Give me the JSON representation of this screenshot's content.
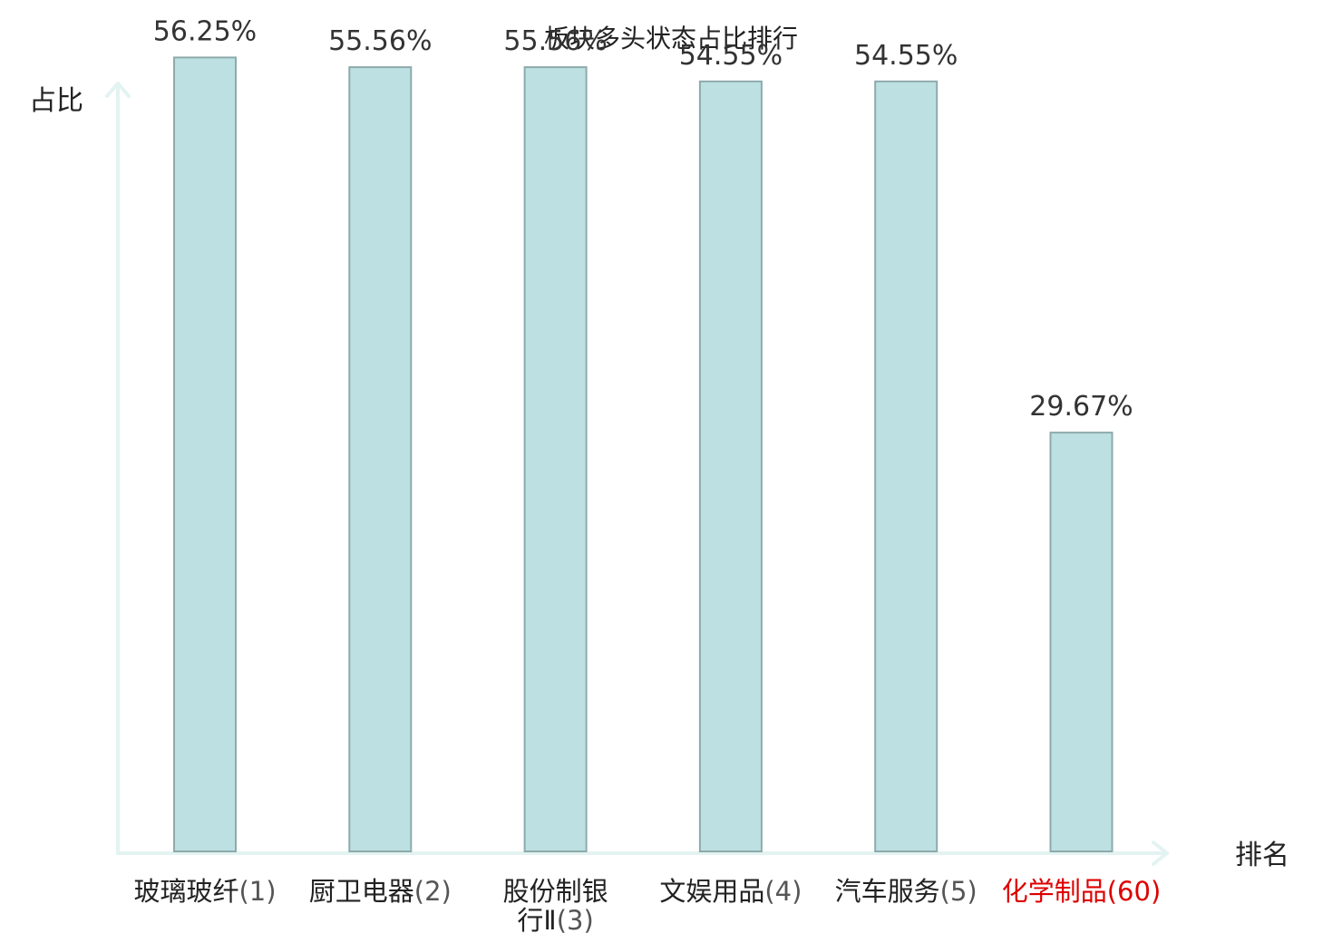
{
  "chart_data": {
    "type": "bar",
    "title": "板块多头状态占比排行",
    "xlabel": "排名",
    "ylabel": "占比",
    "categories": [
      {
        "name": "玻璃玻纤",
        "rank": "(1)",
        "highlight": false
      },
      {
        "name": "厨卫电器",
        "rank": "(2)",
        "highlight": false
      },
      {
        "name": "股份制银行Ⅱ",
        "rank": "(3)",
        "highlight": false
      },
      {
        "name": "文娱用品",
        "rank": "(4)",
        "highlight": false
      },
      {
        "name": "汽车服务",
        "rank": "(5)",
        "highlight": false
      },
      {
        "name": "化学制品",
        "rank": "(60)",
        "highlight": true
      }
    ],
    "values": [
      56.25,
      55.56,
      55.56,
      54.55,
      54.55,
      29.67
    ],
    "value_labels": [
      "56.25%",
      "55.56%",
      "55.56%",
      "54.55%",
      "54.55%",
      "29.67%"
    ],
    "ylim": [
      0,
      60
    ],
    "grid": false,
    "colors": {
      "bar_fill": "#bde1e3",
      "bar_stroke": "#8eaaab",
      "axis": "#e3f3f1",
      "highlight": "#dd0000"
    }
  }
}
